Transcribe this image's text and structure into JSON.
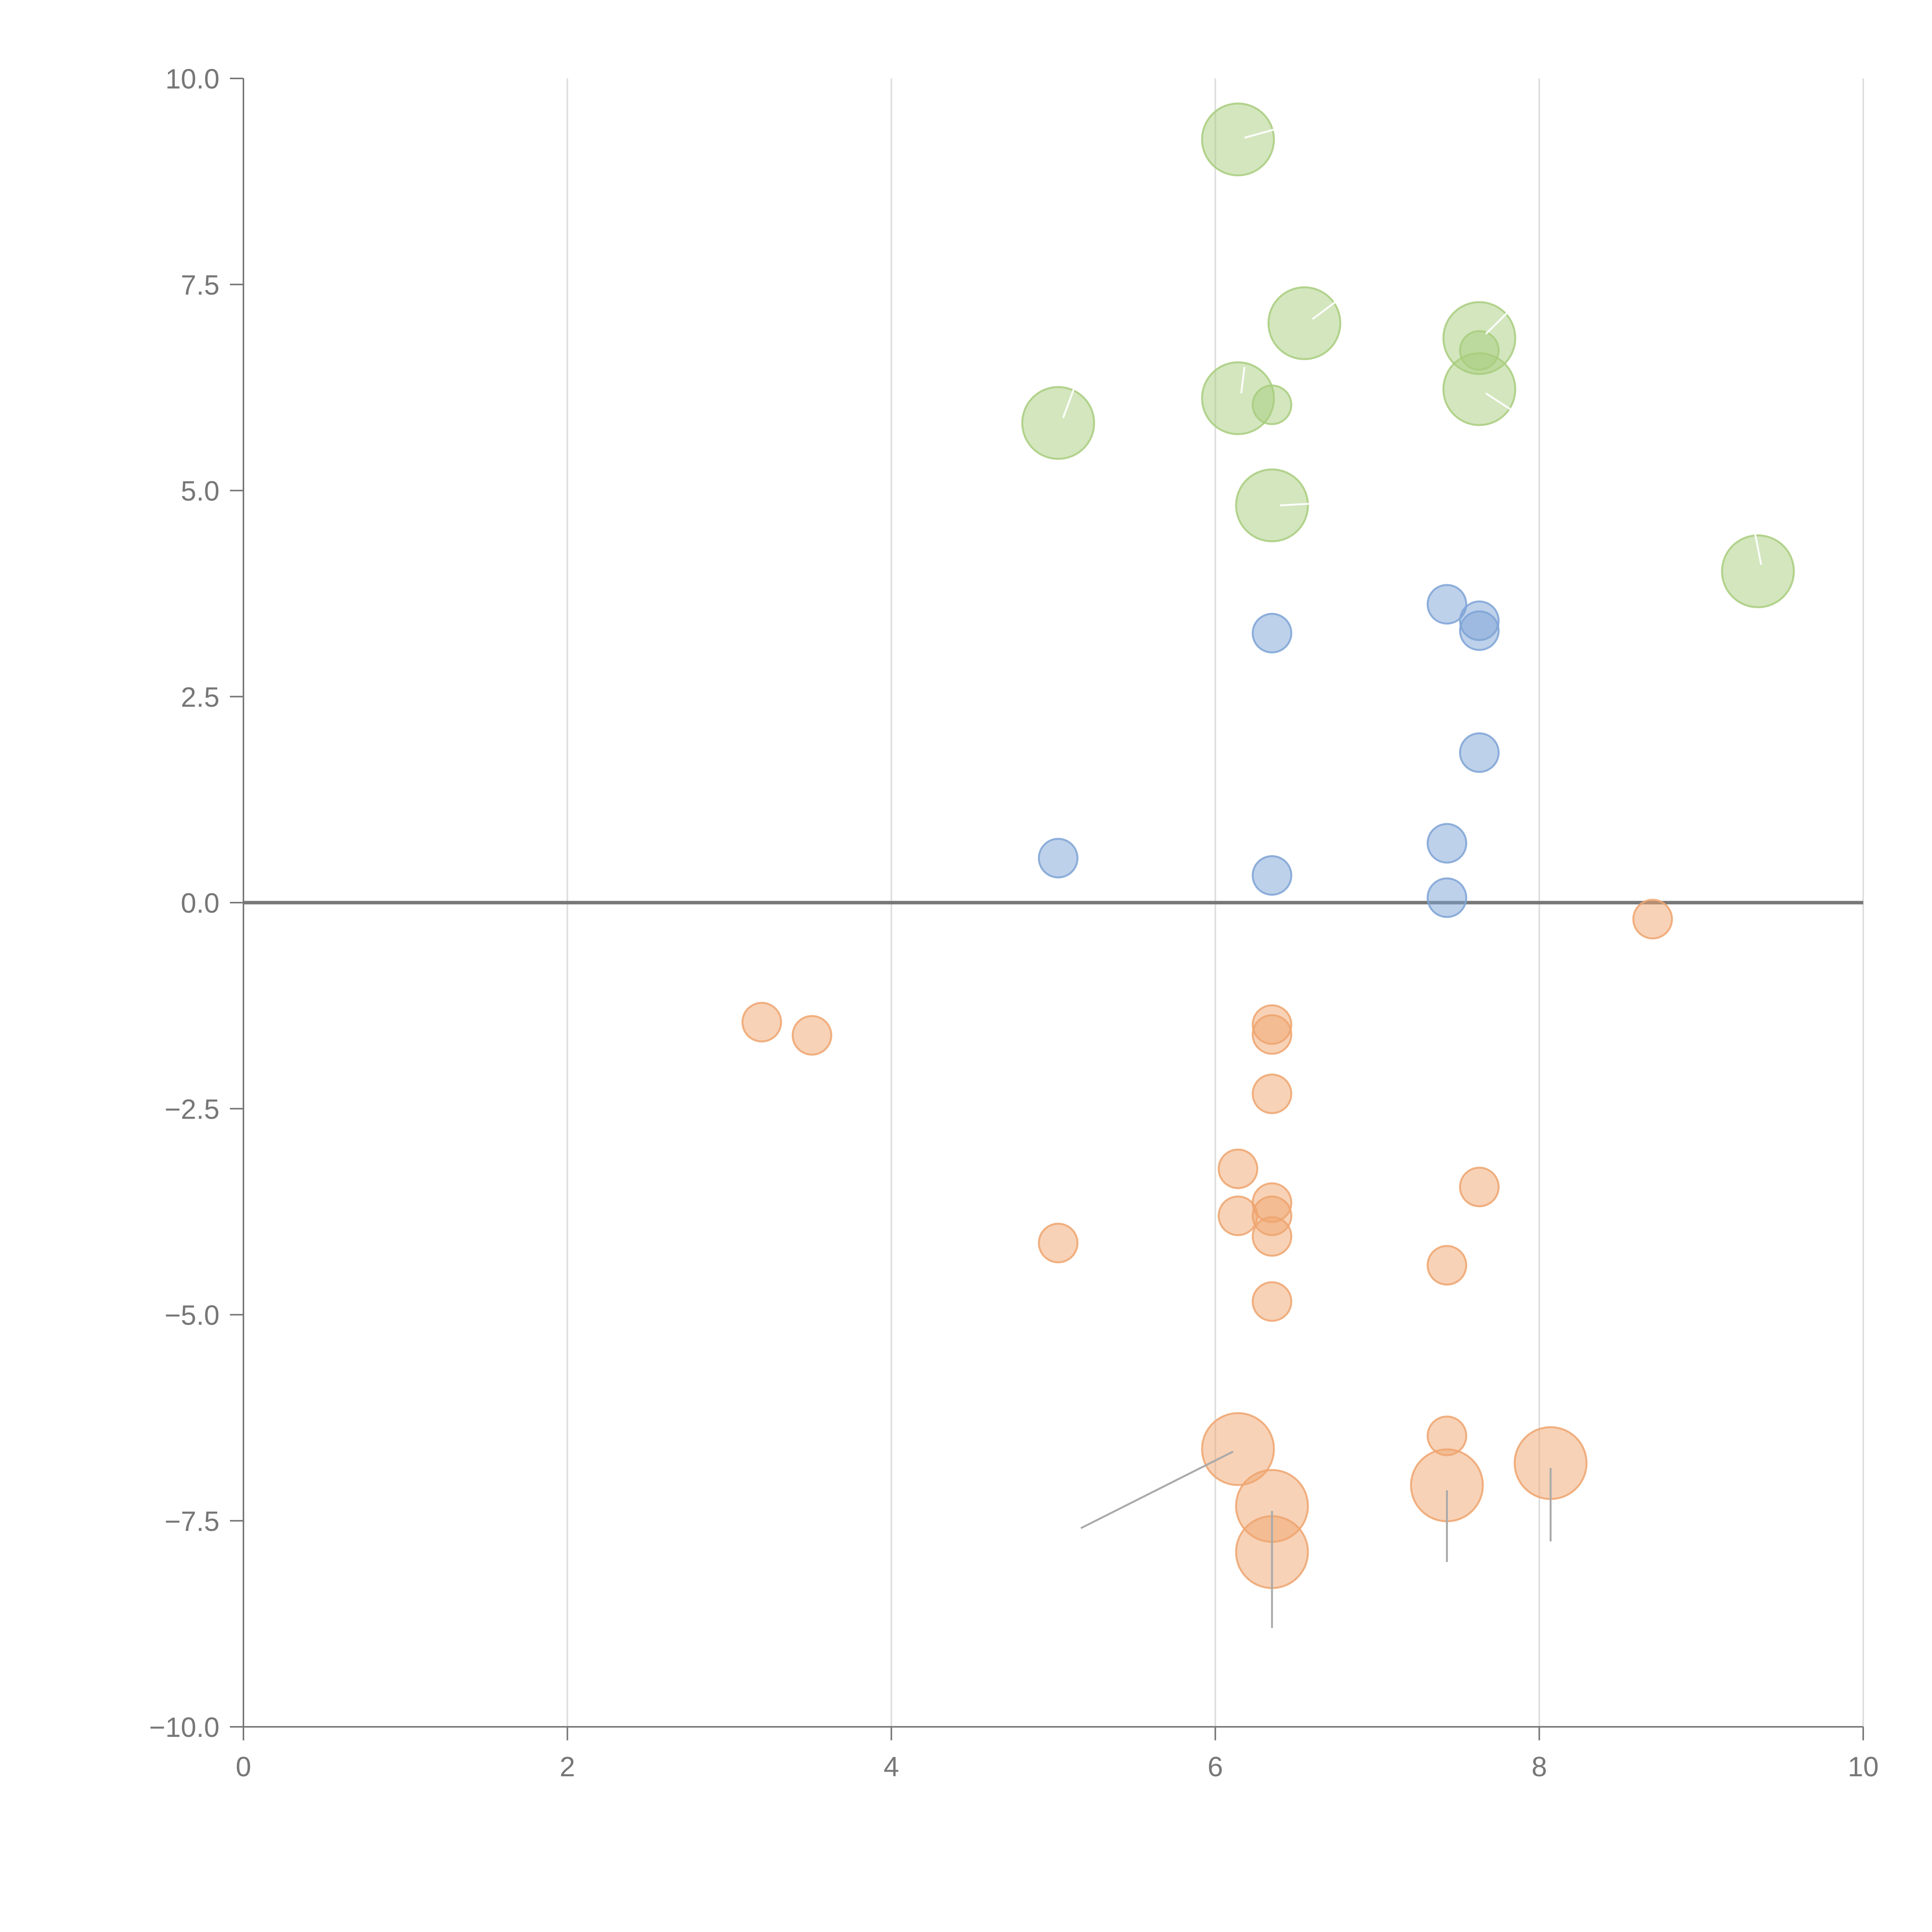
{
  "chart_data": {
    "type": "scatter",
    "title": "",
    "xlabel": "",
    "ylabel": "",
    "xlim": [
      0,
      10
    ],
    "ylim": [
      -10,
      10
    ],
    "x_ticks": [
      "0",
      "2",
      "4",
      "6",
      "8",
      "10"
    ],
    "x_tick_values": [
      0,
      2,
      4,
      6,
      8,
      10
    ],
    "y_ticks": [
      "10.0",
      "7.5",
      "5.0",
      "2.5",
      "0.0",
      "−2.5",
      "−5.0",
      "−7.5",
      "−10.0"
    ],
    "y_tick_values": [
      10,
      7.5,
      5,
      2.5,
      0,
      -2.5,
      -5,
      -7.5,
      -10
    ],
    "vertical_grid": true,
    "zero_line": true,
    "colors": {
      "blue": "#7ea3d6",
      "orange": "#efa56f",
      "green": "#a8cd7e",
      "axis": "#777777",
      "grid": "#dddddd"
    },
    "series": [
      {
        "name": "blue",
        "points": [
          {
            "x": 7.43,
            "y": 3.62,
            "r": 1
          },
          {
            "x": 7.63,
            "y": 3.42,
            "r": 1
          },
          {
            "x": 7.63,
            "y": 3.3,
            "r": 1
          },
          {
            "x": 6.35,
            "y": 3.27,
            "r": 1
          },
          {
            "x": 7.63,
            "y": 1.82,
            "r": 1
          },
          {
            "x": 7.43,
            "y": 0.72,
            "r": 1
          },
          {
            "x": 5.03,
            "y": 0.54,
            "r": 1
          },
          {
            "x": 6.35,
            "y": 0.33,
            "r": 1
          },
          {
            "x": 7.43,
            "y": 0.06,
            "r": 1
          }
        ]
      },
      {
        "name": "orange",
        "points": [
          {
            "x": 8.7,
            "y": -0.2,
            "r": 1
          },
          {
            "x": 3.2,
            "y": -1.45,
            "r": 1
          },
          {
            "x": 3.51,
            "y": -1.61,
            "r": 1
          },
          {
            "x": 6.35,
            "y": -1.48,
            "r": 1
          },
          {
            "x": 6.35,
            "y": -1.6,
            "r": 1
          },
          {
            "x": 6.35,
            "y": -2.32,
            "r": 1
          },
          {
            "x": 6.14,
            "y": -3.23,
            "r": 1
          },
          {
            "x": 7.63,
            "y": -3.45,
            "r": 1
          },
          {
            "x": 6.35,
            "y": -3.64,
            "r": 1
          },
          {
            "x": 6.14,
            "y": -3.8,
            "r": 1
          },
          {
            "x": 6.35,
            "y": -3.8,
            "r": 1
          },
          {
            "x": 6.35,
            "y": -4.05,
            "r": 1
          },
          {
            "x": 5.03,
            "y": -4.13,
            "r": 1
          },
          {
            "x": 7.43,
            "y": -4.4,
            "r": 1
          },
          {
            "x": 6.35,
            "y": -4.84,
            "r": 1
          },
          {
            "x": 7.43,
            "y": -6.47,
            "r": 1
          },
          {
            "x": 6.14,
            "y": -6.63,
            "r": 2
          },
          {
            "x": 8.07,
            "y": -6.8,
            "r": 2
          },
          {
            "x": 7.43,
            "y": -7.07,
            "r": 2
          },
          {
            "x": 6.35,
            "y": -7.32,
            "r": 2
          },
          {
            "x": 6.35,
            "y": -7.88,
            "r": 2
          }
        ]
      },
      {
        "name": "green",
        "points": [
          {
            "x": 6.14,
            "y": 9.26,
            "r": 2
          },
          {
            "x": 6.55,
            "y": 7.03,
            "r": 2
          },
          {
            "x": 7.63,
            "y": 6.85,
            "r": 2
          },
          {
            "x": 7.63,
            "y": 6.7,
            "r": 1
          },
          {
            "x": 7.63,
            "y": 6.23,
            "r": 2
          },
          {
            "x": 6.14,
            "y": 6.12,
            "r": 2
          },
          {
            "x": 6.35,
            "y": 6.04,
            "r": 1
          },
          {
            "x": 5.03,
            "y": 5.82,
            "r": 2
          },
          {
            "x": 6.35,
            "y": 4.82,
            "r": 2
          },
          {
            "x": 9.35,
            "y": 4.02,
            "r": 2
          }
        ]
      }
    ],
    "leader_lines": [
      {
        "color": "white",
        "from": [
          6.18,
          9.28
        ],
        "to": [
          6.4,
          9.4
        ]
      },
      {
        "color": "white",
        "from": [
          6.6,
          7.08
        ],
        "to": [
          6.75,
          7.3
        ]
      },
      {
        "color": "white",
        "from": [
          7.67,
          6.9
        ],
        "to": [
          7.85,
          7.25
        ]
      },
      {
        "color": "white",
        "from": [
          7.67,
          6.18
        ],
        "to": [
          7.85,
          5.95
        ]
      },
      {
        "color": "white",
        "from": [
          6.16,
          6.18
        ],
        "to": [
          6.18,
          6.5
        ]
      },
      {
        "color": "white",
        "from": [
          5.06,
          5.88
        ],
        "to": [
          5.13,
          6.25
        ]
      },
      {
        "color": "white",
        "from": [
          6.4,
          4.82
        ],
        "to": [
          6.68,
          4.85
        ]
      },
      {
        "color": "white",
        "from": [
          9.37,
          4.1
        ],
        "to": [
          9.33,
          4.5
        ]
      },
      {
        "color": "gray",
        "from": [
          6.11,
          -6.66
        ],
        "to": [
          5.17,
          -7.59
        ]
      },
      {
        "color": "gray",
        "from": [
          7.43,
          -7.13
        ],
        "to": [
          7.43,
          -8.0
        ]
      },
      {
        "color": "gray",
        "from": [
          8.07,
          -6.86
        ],
        "to": [
          8.07,
          -7.75
        ]
      },
      {
        "color": "gray",
        "from": [
          6.35,
          -7.38
        ],
        "to": [
          6.35,
          -8.8
        ]
      }
    ]
  }
}
